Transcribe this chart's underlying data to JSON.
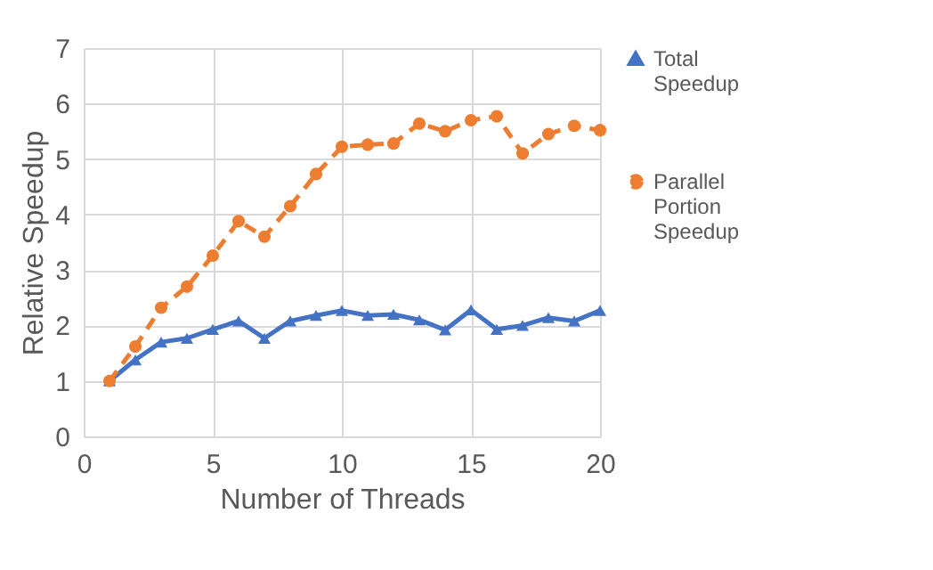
{
  "chart_data": {
    "type": "line",
    "xlabel": "Number of Threads",
    "ylabel": "Relative Speedup",
    "x": [
      1,
      2,
      3,
      4,
      5,
      6,
      7,
      8,
      9,
      10,
      11,
      12,
      13,
      14,
      15,
      16,
      17,
      18,
      19,
      20
    ],
    "series": [
      {
        "name": "Total Speedup",
        "color": "#4472c4",
        "marker": "triangle",
        "line_style": "solid",
        "values": [
          1,
          1.38,
          1.7,
          1.77,
          1.93,
          2.08,
          1.77,
          2.08,
          2.18,
          2.27,
          2.18,
          2.2,
          2.1,
          1.92,
          2.28,
          1.93,
          2.0,
          2.14,
          2.08,
          2.27
        ]
      },
      {
        "name": "Parallel Portion Speedup",
        "color": "#ed7d31",
        "marker": "circle",
        "line_style": "dashed",
        "values": [
          1,
          1.62,
          2.32,
          2.7,
          3.26,
          3.88,
          3.6,
          4.15,
          4.73,
          5.22,
          5.26,
          5.28,
          5.64,
          5.5,
          5.7,
          5.77,
          5.1,
          5.45,
          5.6,
          5.52
        ]
      }
    ],
    "xlim": [
      0,
      20
    ],
    "xticks": [
      0,
      5,
      10,
      15,
      20
    ],
    "ylim": [
      0,
      7
    ],
    "yticks": [
      0,
      1,
      2,
      3,
      4,
      5,
      6,
      7
    ],
    "grid": true,
    "legend": "right"
  }
}
